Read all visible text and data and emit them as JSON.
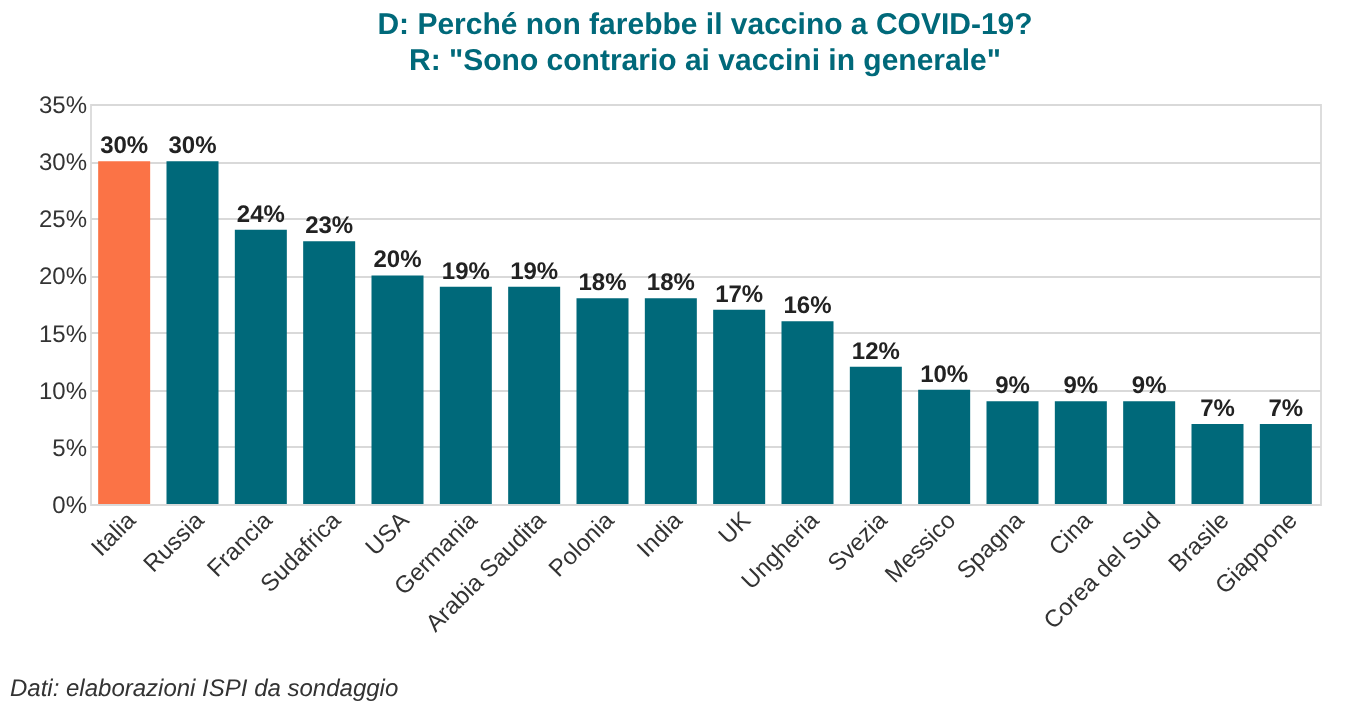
{
  "chart_data": {
    "type": "bar",
    "title": "D: Perché non farebbe il vaccino a COVID-19?",
    "subtitle": "R: \"Sono contrario ai vaccini in generale\"",
    "categories": [
      "Italia",
      "Russia",
      "Francia",
      "Sudafrica",
      "USA",
      "Germania",
      "Arabia Saudita",
      "Polonia",
      "India",
      "UK",
      "Ungheria",
      "Svezia",
      "Messico",
      "Spagna",
      "Cina",
      "Corea del Sud",
      "Brasile",
      "Giappone"
    ],
    "values": [
      30,
      30,
      24,
      23,
      20,
      19,
      19,
      18,
      18,
      17,
      16,
      12,
      10,
      9,
      9,
      9,
      7,
      7
    ],
    "value_labels": [
      "30%",
      "30%",
      "24%",
      "23%",
      "20%",
      "19%",
      "19%",
      "18%",
      "18%",
      "17%",
      "16%",
      "12%",
      "10%",
      "9%",
      "9%",
      "9%",
      "7%",
      "7%"
    ],
    "colors": [
      "#fb7346",
      "#00697a",
      "#00697a",
      "#00697a",
      "#00697a",
      "#00697a",
      "#00697a",
      "#00697a",
      "#00697a",
      "#00697a",
      "#00697a",
      "#00697a",
      "#00697a",
      "#00697a",
      "#00697a",
      "#00697a",
      "#00697a",
      "#00697a"
    ],
    "ylim": [
      0,
      35
    ],
    "yticks": [
      {
        "value": 0,
        "label": "0%"
      },
      {
        "value": 5,
        "label": "5%"
      },
      {
        "value": 10,
        "label": "10%"
      },
      {
        "value": 15,
        "label": "15%"
      },
      {
        "value": 20,
        "label": "20%"
      },
      {
        "value": 25,
        "label": "25%"
      },
      {
        "value": 30,
        "label": "30%"
      },
      {
        "value": 35,
        "label": "35%"
      }
    ],
    "grid": "y",
    "legend": false,
    "annotations": [
      "Dati: elaborazioni ISPI da sondaggio"
    ]
  }
}
